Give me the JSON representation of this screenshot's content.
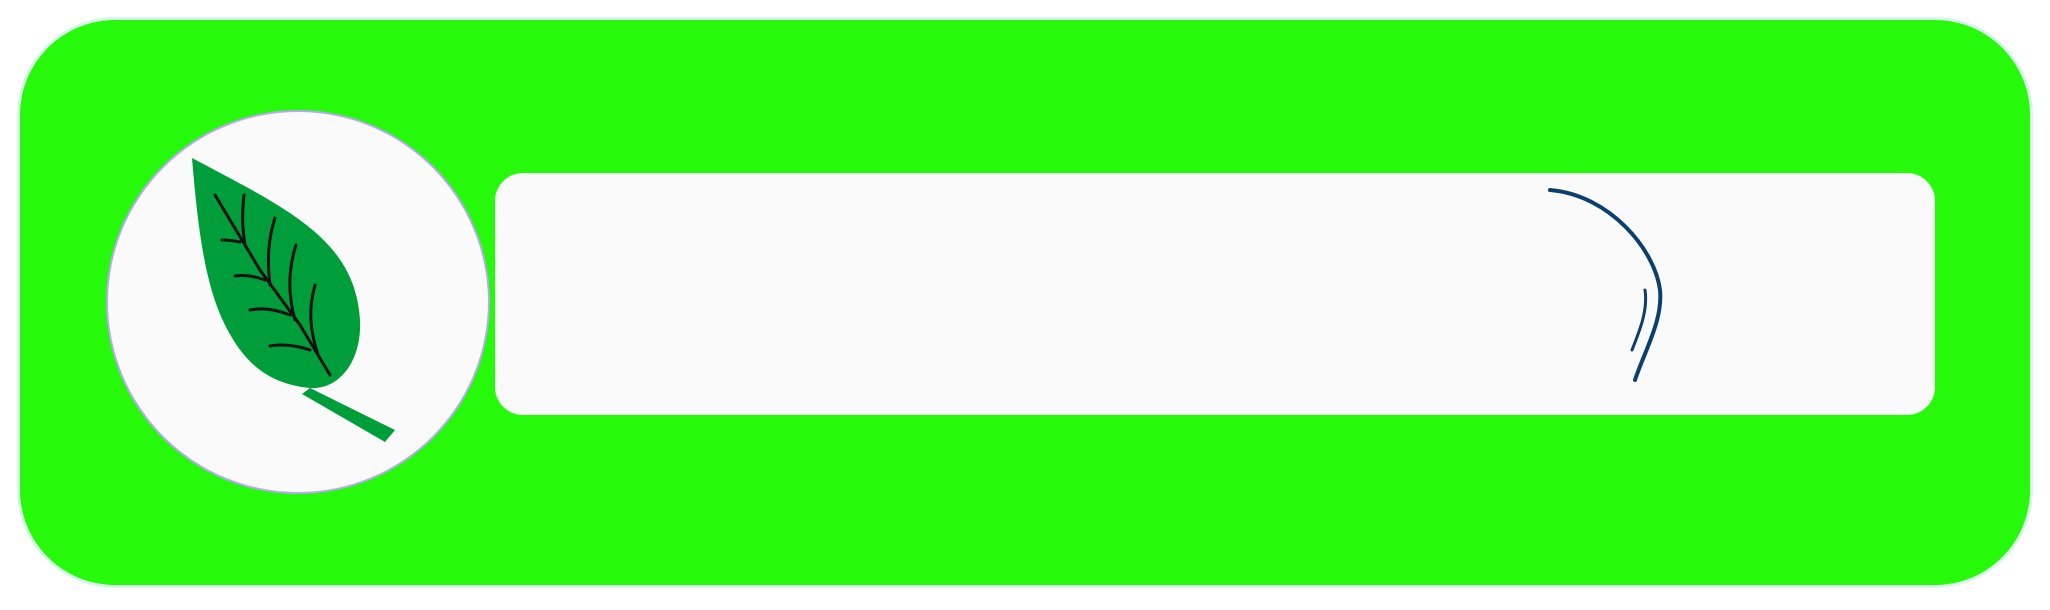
{
  "colors": {
    "frame": "#27f90a",
    "track": "#fafafa",
    "leaf": "#009e3a",
    "vein": "#111111"
  },
  "icons": {
    "logo": "leaf-icon",
    "action": "arc-icon"
  },
  "search": {
    "value": ""
  }
}
